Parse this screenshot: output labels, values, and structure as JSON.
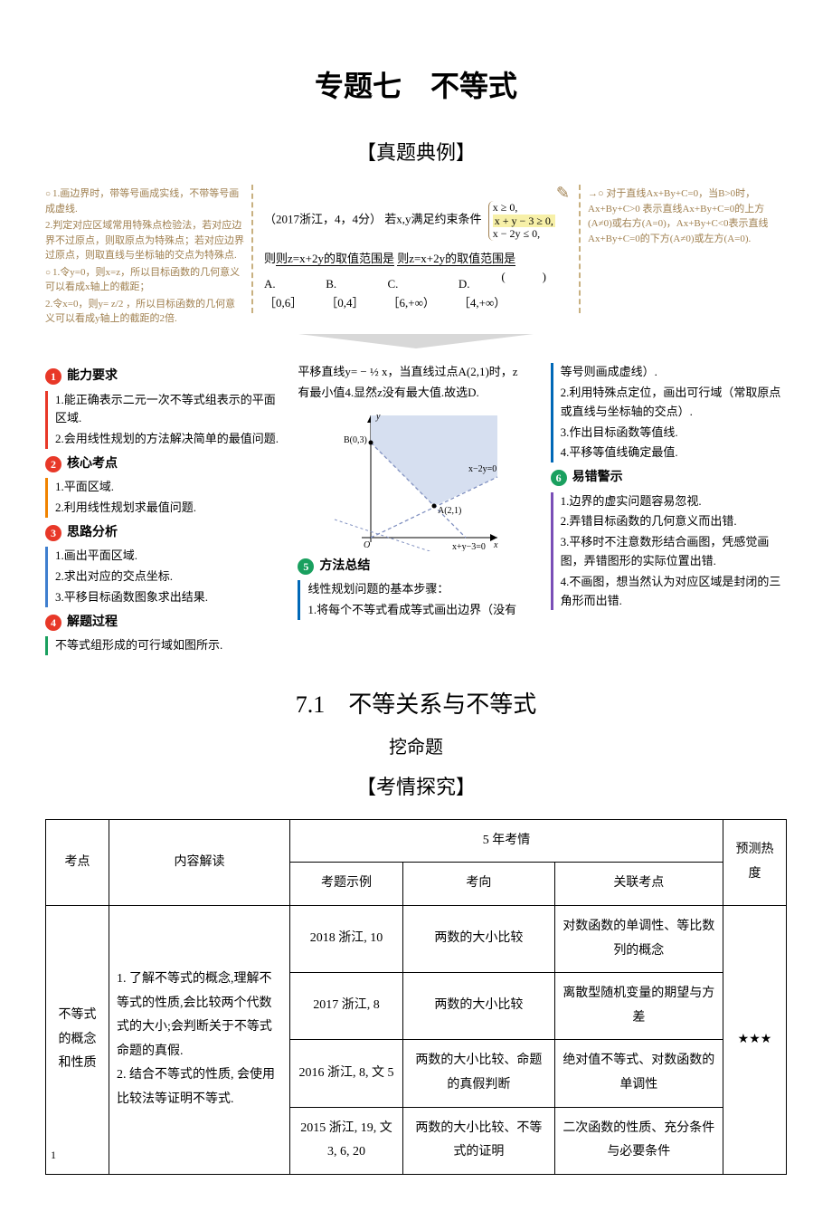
{
  "titles": {
    "main": "专题七　不等式",
    "examples": "【真题典例】",
    "section": "7.1　不等关系与不等式",
    "wa": "挖命题",
    "kq": "【考情探究】"
  },
  "example_left": {
    "n1": "1.画边界时，带等号画成实线，不带等号画成虚线.",
    "n2": "2.判定对应区域常用特殊点检验法，若对应边界不过原点，则取原点为特殊点；若对应边界过原点，则取直线与坐标轴的交点为特殊点.",
    "n3_lead": "1.令y=0，则x=z，所以目标函数的几何意义可以看成x轴上的截距；",
    "n3b": "2.令x=0，则y= z/2 ，所以目标函数的几何意义可以看成y轴上的截距的2倍."
  },
  "example_center": {
    "stem_year": "（2017浙江，4，4分）",
    "stem_text": "若x,y满足约束条件",
    "cond1": "x ≥ 0,",
    "cond2": "x + y − 3 ≥ 0,",
    "cond3": "x − 2y ≤ 0,",
    "ask": "则z=x+2y的取值范围是",
    "optA": "A.［0,6］",
    "optB": "B.［0,4］",
    "optC": "C.［6,+∞）",
    "optD": "D.［4,+∞）"
  },
  "example_right": {
    "n1": "对于直线Ax+By+C=0，当B>0时，Ax+By+C>0 表示直线Ax+By+C=0的上方(A≠0)或右方(A=0)，Ax+By+C<0表示直线Ax+By+C=0的下方(A≠0)或左方(A=0)."
  },
  "chart": {
    "type": "line-region",
    "pointA": "A(2,1)",
    "pointB": "B(0,3)",
    "line1": "x−2y=0",
    "line2": "x+y−3=0",
    "origin": "O",
    "axis_x": "x",
    "axis_y": "y",
    "axis_color": "#000000",
    "dash_color": "#8090c0",
    "fill_color": "#d6dff0",
    "font_size": 10
  },
  "col1": {
    "h1": "能力要求",
    "h1_items": [
      "1.能正确表示二元一次不等式组表示的平面区域.",
      "2.会用线性规划的方法解决简单的最值问题."
    ],
    "h2": "核心考点",
    "h2_items": [
      "1.平面区域.",
      "2.利用线性规划求最值问题."
    ],
    "h3": "思路分析",
    "h3_items": [
      "1.画出平面区域.",
      "2.求出对应的交点坐标.",
      "3.平移目标函数图象求出结果."
    ],
    "h4": "解题过程",
    "h4_text": "不等式组形成的可行域如图所示."
  },
  "col2": {
    "top_text1": "平移直线y= − ½ x，当直线过点A(2,1)时，z",
    "top_text2": "有最小值4.显然z没有最大值.故选D.",
    "h5": "方法总结",
    "h5_items": [
      "线性规划问题的基本步骤：",
      "1.将每个不等式看成等式画出边界（没有"
    ]
  },
  "col3": {
    "pre_items": [
      "等号则画成虚线）.",
      "2.利用特殊点定位，画出可行域（常取原点或直线与坐标轴的交点）.",
      "3.作出目标函数等值线.",
      "4.平移等值线确定最值."
    ],
    "h6": "易错警示",
    "h6_items": [
      "1.边界的虚实问题容易忽视.",
      "2.弄错目标函数的几何意义而出错.",
      "3.平移时不注意数形结合画图，凭感觉画图，弄错图形的实际位置出错.",
      "4.不画图，想当然认为对应区域是封闭的三角形而出错."
    ]
  },
  "dots": {
    "d1": "1",
    "d2": "2",
    "d3": "3",
    "d4": "4",
    "d5": "5",
    "d6": "6"
  },
  "table": {
    "header": {
      "c1": "考点",
      "c2": "内容解读",
      "c3": "5 年考情",
      "c3a": "考题示例",
      "c3b": "考向",
      "c3c": "关联考点",
      "c4": "预测热度"
    },
    "row_topic": "不等式的概念和性质",
    "row_content": "1. 了解不等式的概念,理解不等式的性质,会比较两个代数式的大小;会判断关于不等式命题的真假.\n2. 结合不等式的性质, 会使用比较法等证明不等式.",
    "rows": [
      {
        "a": "2018 浙江, 10",
        "b": "两数的大小比较",
        "c": "对数函数的单调性、等比数列的概念"
      },
      {
        "a": "2017 浙江, 8",
        "b": "两数的大小比较",
        "c": "离散型随机变量的期望与方差"
      },
      {
        "a": "2016 浙江, 8, 文 5",
        "b": "两数的大小比较、命题的真假判断",
        "c": "绝对值不等式、对数函数的单调性"
      },
      {
        "a": "2015 浙江, 19, 文 3, 6, 20",
        "b": "两数的大小比较、不等式的证明",
        "c": "二次函数的性质、充分条件与必要条件"
      }
    ],
    "heat": "★★★"
  },
  "page_num": "1"
}
